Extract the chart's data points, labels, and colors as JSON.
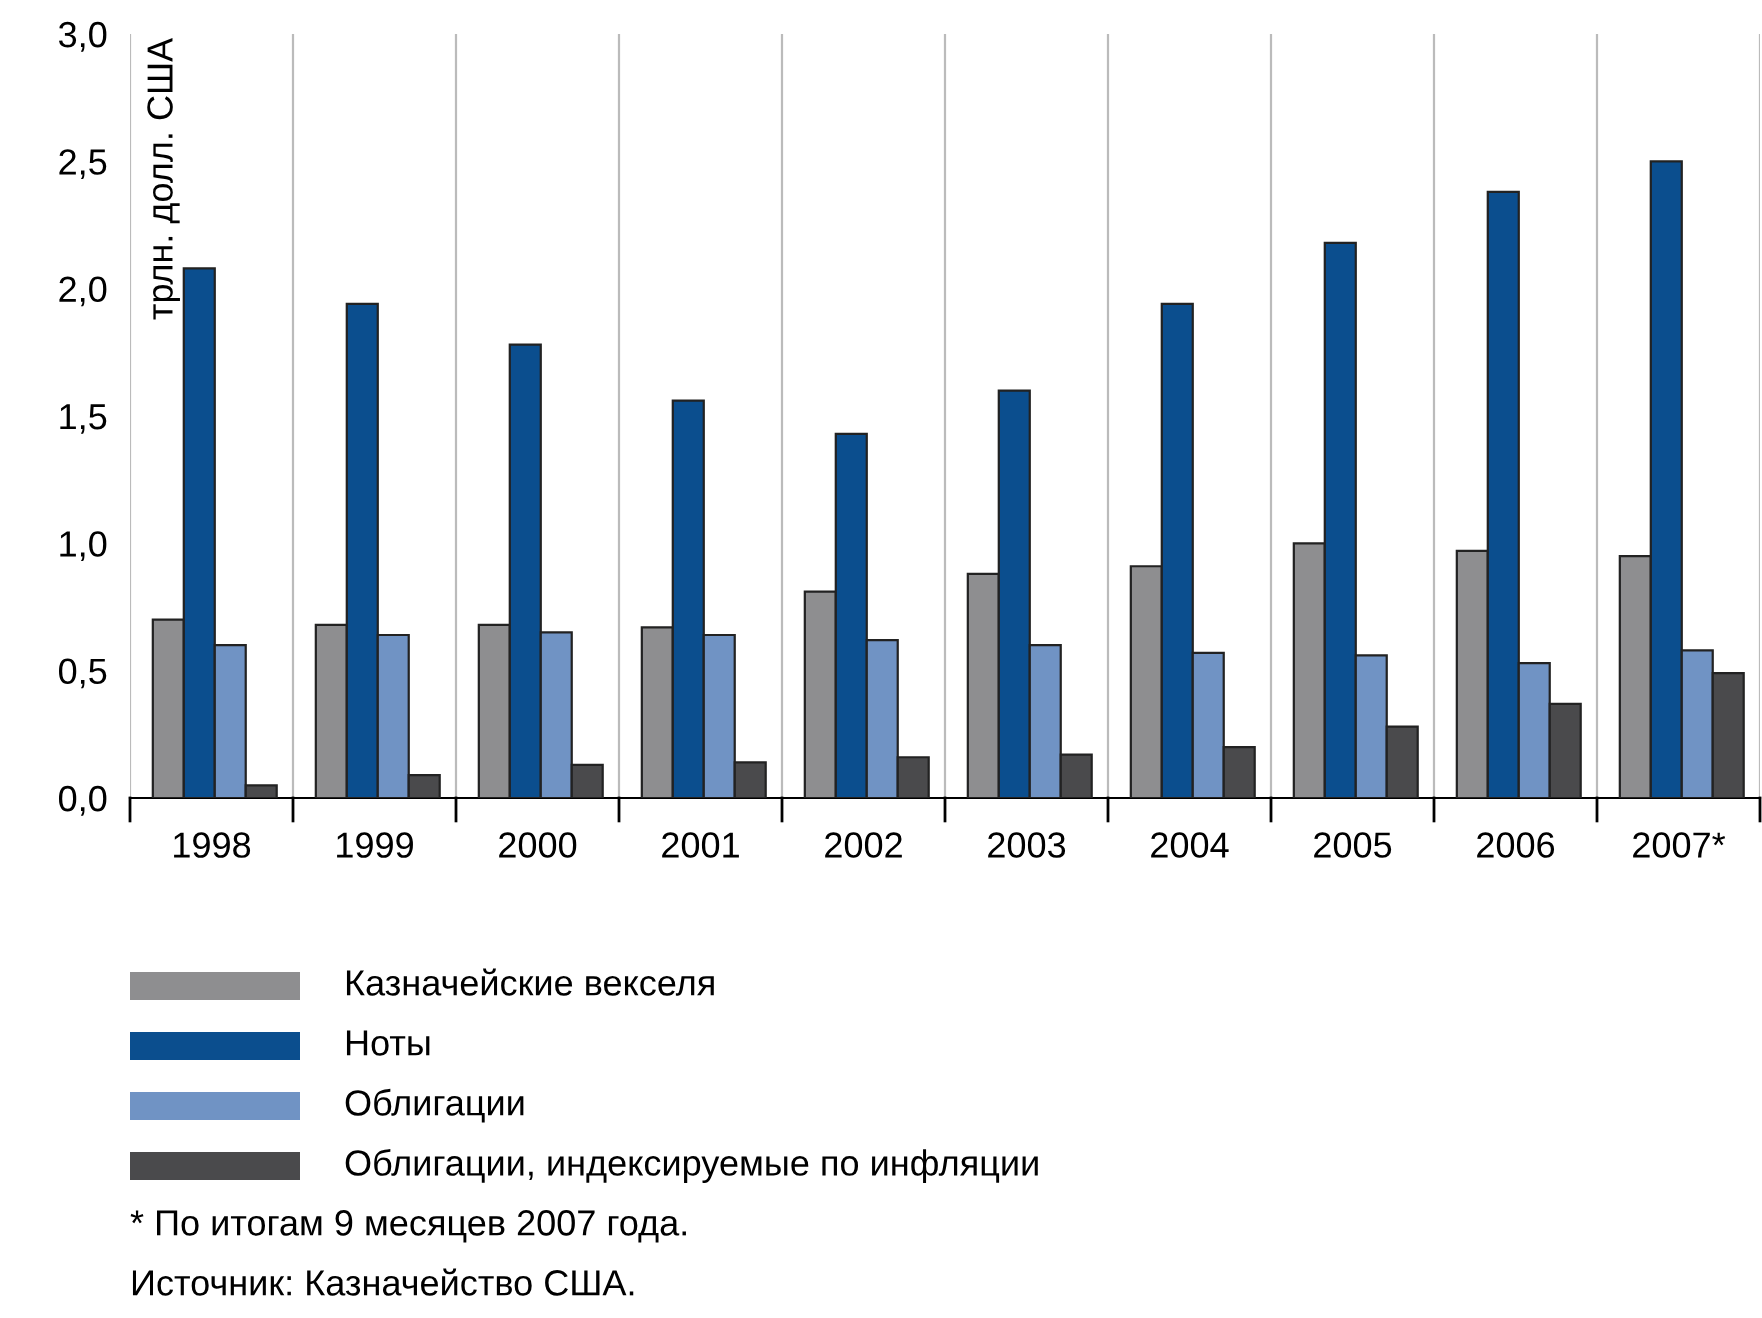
{
  "chart_data": {
    "type": "bar",
    "ylabel": "трлн. долл. США",
    "categories": [
      "1998",
      "1999",
      "2000",
      "2001",
      "2002",
      "2003",
      "2004",
      "2005",
      "2006",
      "2007*"
    ],
    "series": [
      {
        "name": "Казначейские векселя",
        "color": "#8e8e90",
        "values": [
          0.7,
          0.68,
          0.68,
          0.67,
          0.81,
          0.88,
          0.91,
          1.0,
          0.97,
          0.95
        ]
      },
      {
        "name": "Ноты",
        "color": "#0b4e8e",
        "values": [
          2.08,
          1.94,
          1.78,
          1.56,
          1.43,
          1.6,
          1.94,
          2.18,
          2.38,
          2.5
        ]
      },
      {
        "name": "Облигации",
        "color": "#7093c4",
        "values": [
          0.6,
          0.64,
          0.65,
          0.64,
          0.62,
          0.6,
          0.57,
          0.56,
          0.53,
          0.58
        ]
      },
      {
        "name": "Облигации, индексируемые по инфляции",
        "color": "#4a4a4c",
        "values": [
          0.05,
          0.09,
          0.13,
          0.14,
          0.16,
          0.17,
          0.2,
          0.28,
          0.37,
          0.49
        ]
      }
    ],
    "ylim": [
      0,
      3.0
    ],
    "yticks": [
      {
        "value": 0,
        "label": "0,0"
      },
      {
        "value": 0.5,
        "label": "0,5"
      },
      {
        "value": 1.0,
        "label": "1,0"
      },
      {
        "value": 1.5,
        "label": "1,5"
      },
      {
        "value": 2.0,
        "label": "2,0"
      },
      {
        "value": 2.5,
        "label": "2,5"
      },
      {
        "value": 3.0,
        "label": "3,0"
      }
    ],
    "grid": "x",
    "legend": "bottom",
    "annotations": [
      "* По итогам 9 месяцев 2007 года.",
      "Источник: Казначейство США."
    ]
  }
}
